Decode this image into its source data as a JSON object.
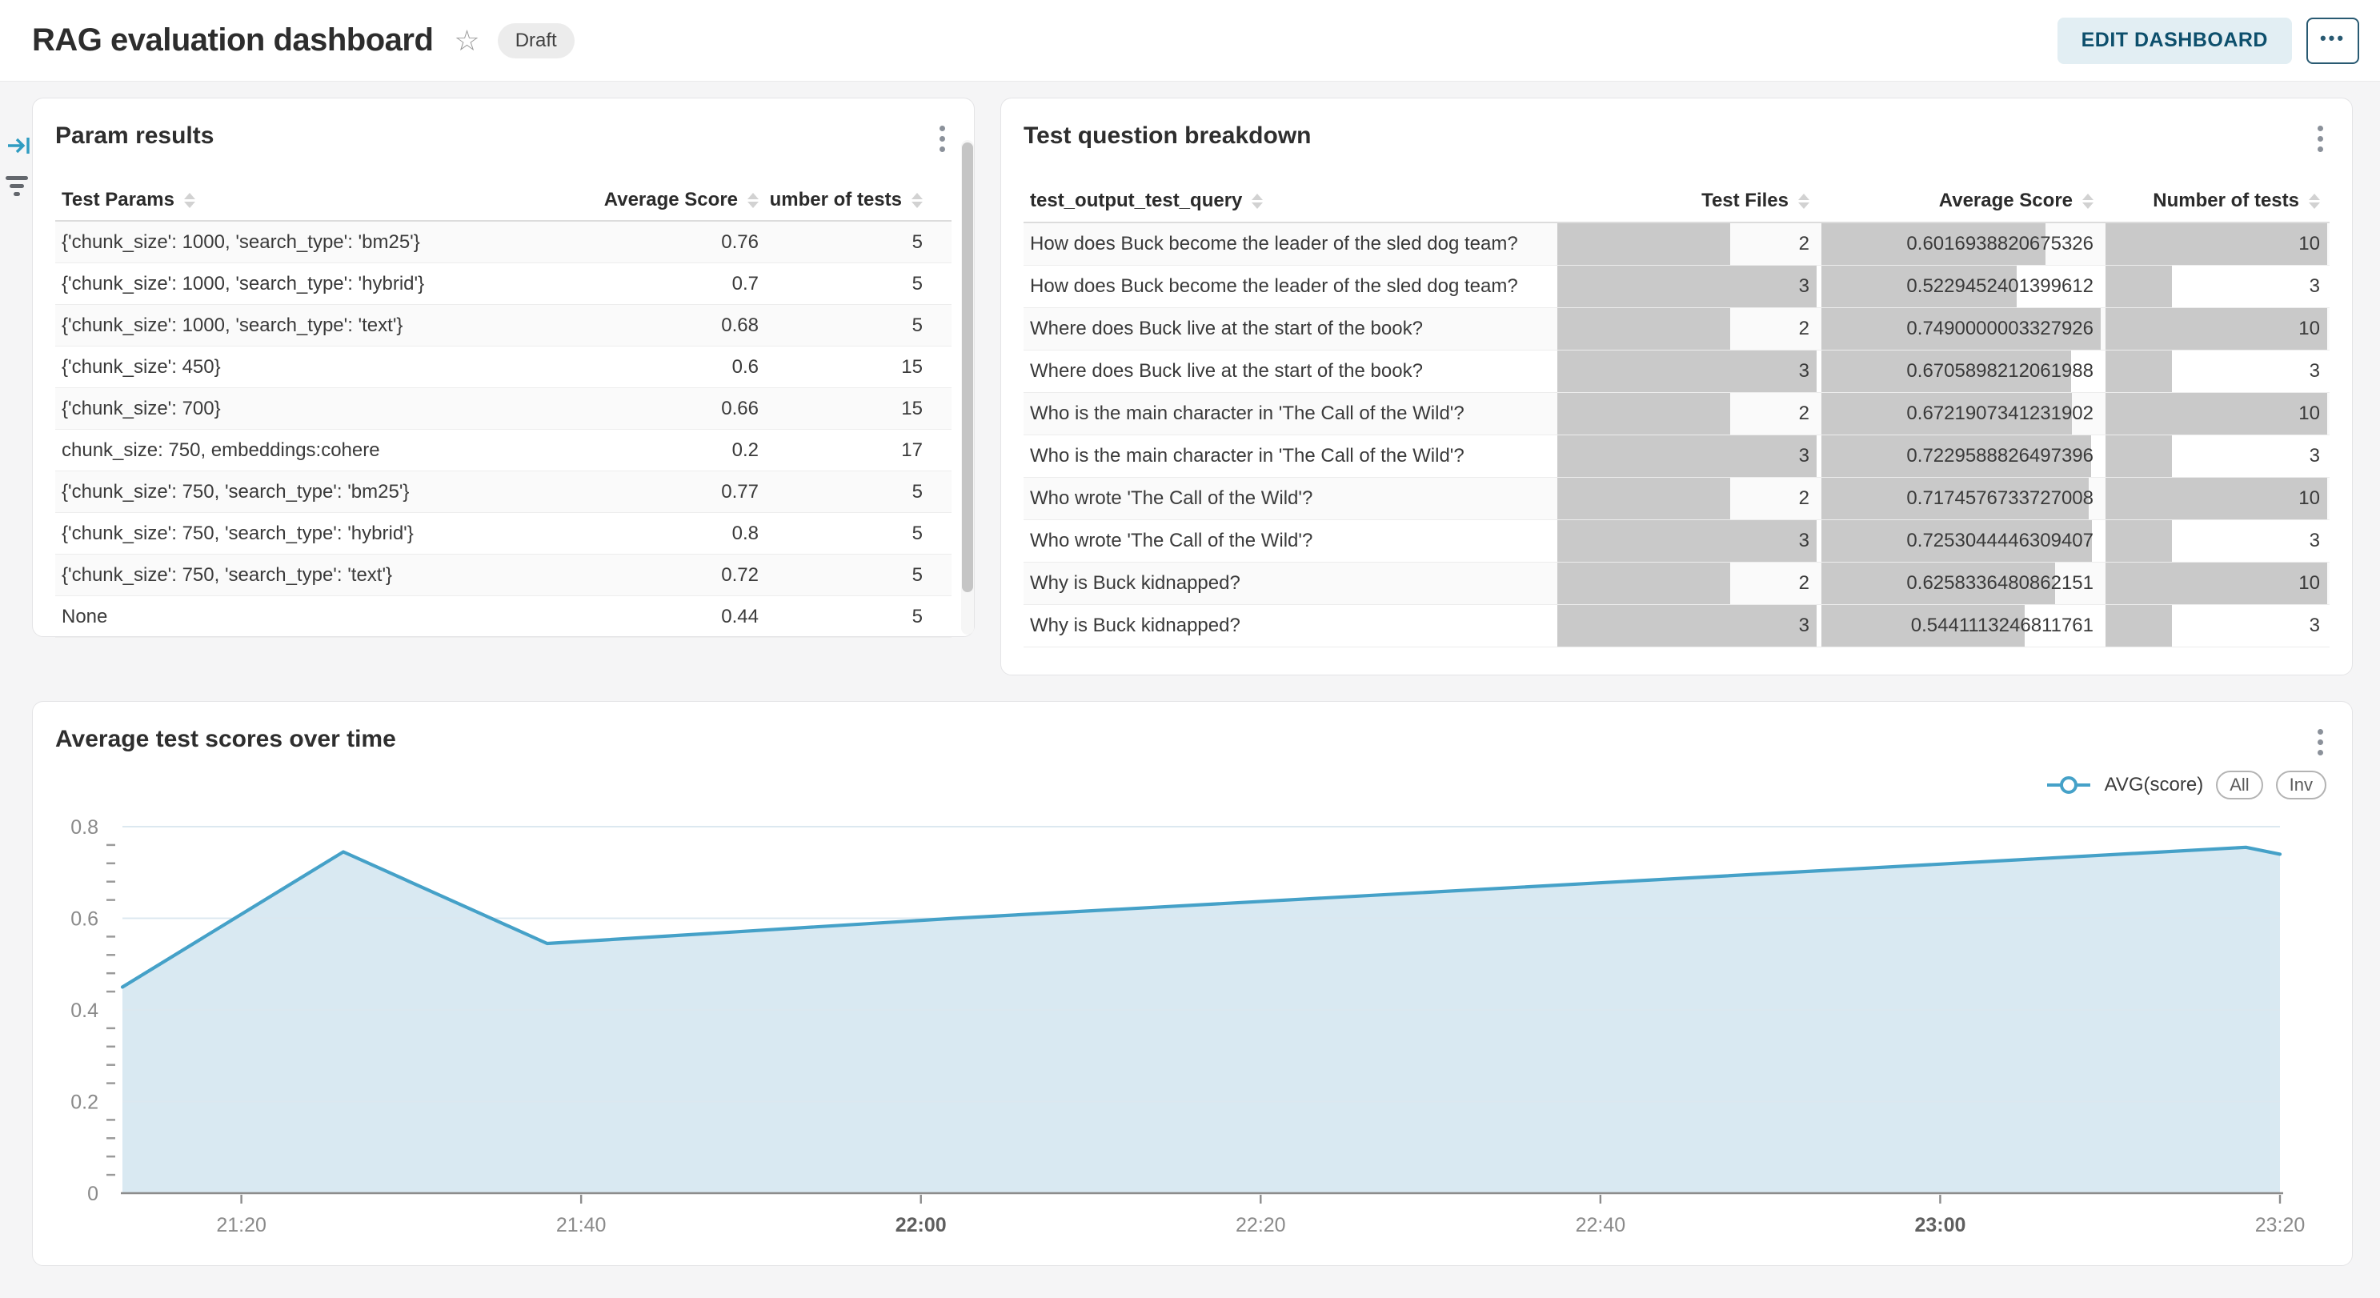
{
  "header": {
    "title": "RAG evaluation dashboard",
    "status_badge": "Draft",
    "edit_button": "EDIT DASHBOARD",
    "more_button": "•••",
    "star_icon": "☆"
  },
  "icons": {
    "star": "star-outline",
    "panel_kebab": "kebab-menu",
    "sort": "sort-arrows",
    "collapse": "expand-panel-right",
    "filter": "filter-lines"
  },
  "panels": {
    "param_results": {
      "title": "Param results",
      "columns": [
        "Test Params",
        "Average Score",
        "Number of tests"
      ],
      "rows": [
        [
          "{'chunk_size': 1000, 'search_type': 'bm25'}",
          "0.76",
          "5"
        ],
        [
          "{'chunk_size': 1000, 'search_type': 'hybrid'}",
          "0.7",
          "5"
        ],
        [
          "{'chunk_size': 1000, 'search_type': 'text'}",
          "0.68",
          "5"
        ],
        [
          "{'chunk_size': 450}",
          "0.6",
          "15"
        ],
        [
          "{'chunk_size': 700}",
          "0.66",
          "15"
        ],
        [
          "chunk_size: 750, embeddings:cohere",
          "0.2",
          "17"
        ],
        [
          "{'chunk_size': 750, 'search_type': 'bm25'}",
          "0.77",
          "5"
        ],
        [
          "{'chunk_size': 750, 'search_type': 'hybrid'}",
          "0.8",
          "5"
        ],
        [
          "{'chunk_size': 750, 'search_type': 'text'}",
          "0.72",
          "5"
        ],
        [
          "None",
          "0.44",
          "5"
        ]
      ]
    },
    "question_breakdown": {
      "title": "Test question breakdown",
      "columns": [
        "test_output_test_query",
        "Test Files",
        "Average Score",
        "Number of tests"
      ],
      "bar_color": "#c9c9c9",
      "rows": [
        [
          "How does Buck become the leader of the sled dog team?",
          "2",
          "0.6016938820675326",
          "10"
        ],
        [
          "How does Buck become the leader of the sled dog team?",
          "3",
          "0.5229452401399612",
          "3"
        ],
        [
          "Where does Buck live at the start of the book?",
          "2",
          "0.7490000003327926",
          "10"
        ],
        [
          "Where does Buck live at the start of the book?",
          "3",
          "0.6705898212061988",
          "3"
        ],
        [
          "Who is the main character in 'The Call of the Wild'?",
          "2",
          "0.6721907341231902",
          "10"
        ],
        [
          "Who is the main character in 'The Call of the Wild'?",
          "3",
          "0.7229588826497396",
          "3"
        ],
        [
          "Who wrote 'The Call of the Wild'?",
          "2",
          "0.7174576733727008",
          "10"
        ],
        [
          "Who wrote 'The Call of the Wild'?",
          "3",
          "0.7253044446309407",
          "3"
        ],
        [
          "Why is Buck kidnapped?",
          "2",
          "0.6258336480862151",
          "10"
        ],
        [
          "Why is Buck kidnapped?",
          "3",
          "0.5441113246811761",
          "3"
        ]
      ]
    },
    "scores_chart": {
      "title": "Average test scores over time",
      "legend": {
        "series_label": "AVG(score)",
        "buttons": [
          "All",
          "Inv"
        ]
      }
    }
  },
  "chart_data": {
    "type": "area",
    "title": "Average test scores over time",
    "series": [
      {
        "name": "AVG(score)",
        "points": [
          [
            "21:13",
            0.45
          ],
          [
            "21:26",
            0.745
          ],
          [
            "21:38",
            0.545
          ],
          [
            "22:02",
            0.6
          ],
          [
            "23:18",
            0.755
          ],
          [
            "23:20",
            0.74
          ]
        ]
      }
    ],
    "x_ticks": [
      {
        "label": "21:20",
        "bold": false
      },
      {
        "label": "21:40",
        "bold": false
      },
      {
        "label": "22:00",
        "bold": true
      },
      {
        "label": "22:20",
        "bold": false
      },
      {
        "label": "22:40",
        "bold": false
      },
      {
        "label": "23:00",
        "bold": true
      },
      {
        "label": "23:20",
        "bold": false
      }
    ],
    "y_ticks": [
      "0",
      "0.2",
      "0.4",
      "0.6",
      "0.8"
    ],
    "y_minor_step": 0.04,
    "ylim": [
      0,
      0.8
    ],
    "xlim": [
      "21:13",
      "23:20"
    ],
    "grid": true,
    "legend_position": "top-right",
    "line_color": "#45a1c8",
    "fill_color": "#d9e9f2",
    "axis_color": "#8c8c8c",
    "label_color": "#8a8a8a"
  }
}
